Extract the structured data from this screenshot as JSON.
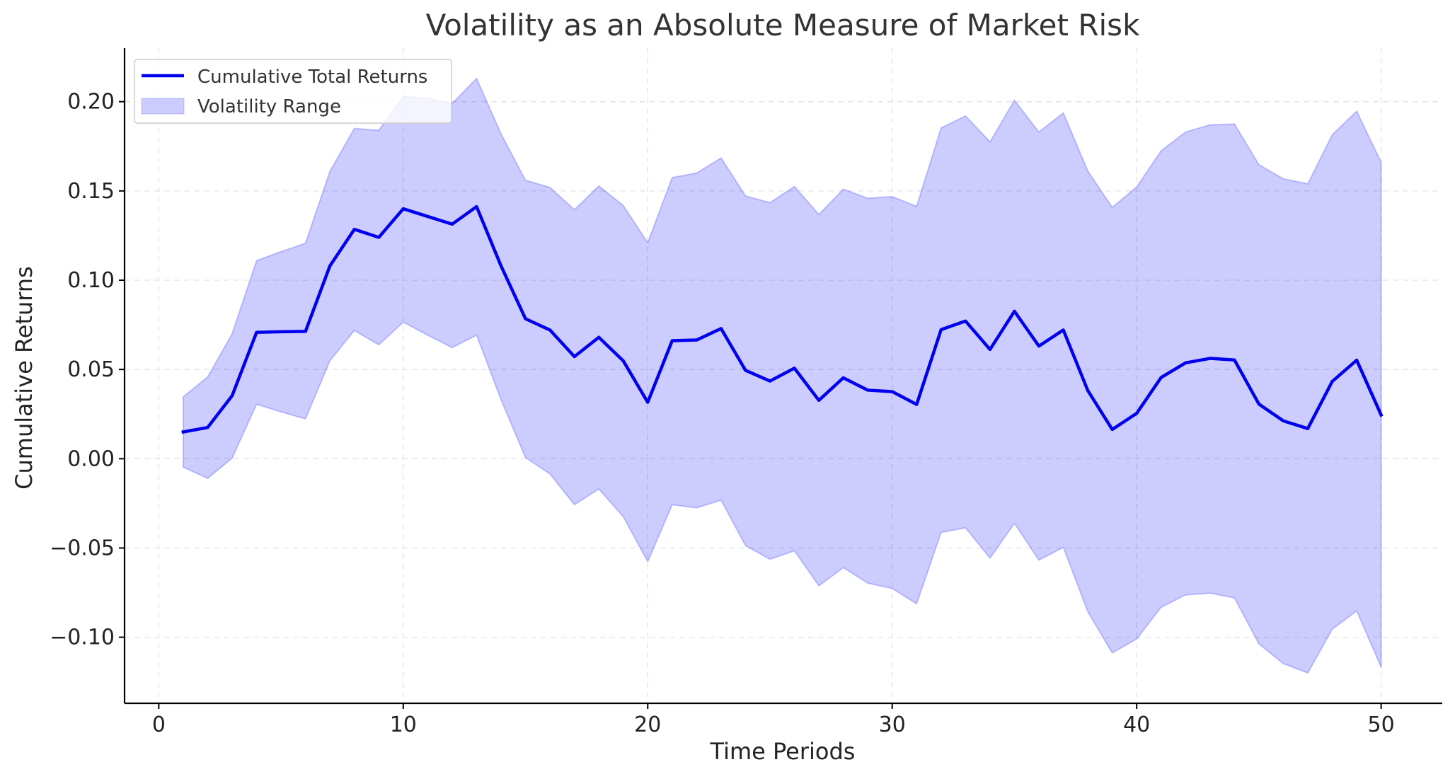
{
  "chart_data": {
    "type": "line",
    "title": "Volatility as an Absolute Measure of Market Risk",
    "xlabel": "Time Periods",
    "ylabel": "Cumulative Returns",
    "xlim": [
      -1.4,
      52.5
    ],
    "ylim": [
      -0.137,
      0.23
    ],
    "xticks": [
      0,
      10,
      20,
      30,
      40,
      50
    ],
    "xtick_labels": [
      "0",
      "10",
      "20",
      "30",
      "40",
      "50"
    ],
    "yticks": [
      -0.1,
      -0.05,
      0.0,
      0.05,
      0.1,
      0.15,
      0.2
    ],
    "ytick_labels": [
      "−0.10",
      "−0.05",
      "0.00",
      "0.05",
      "0.10",
      "0.15",
      "0.20"
    ],
    "grid": true,
    "legend_position": "top-left",
    "x": [
      1,
      2,
      3,
      4,
      5,
      6,
      7,
      8,
      9,
      10,
      11,
      12,
      13,
      14,
      15,
      16,
      17,
      18,
      19,
      20,
      21,
      22,
      23,
      24,
      25,
      26,
      27,
      28,
      29,
      30,
      31,
      32,
      33,
      34,
      35,
      36,
      37,
      38,
      39,
      40,
      41,
      42,
      43,
      44,
      45,
      46,
      47,
      48,
      49,
      50
    ],
    "series": [
      {
        "name": "Cumulative Total Returns",
        "color": "#0000ee",
        "values": [
          0.015,
          0.0175,
          0.0353,
          0.0708,
          0.0711,
          0.0713,
          0.108,
          0.1285,
          0.124,
          0.14,
          0.1357,
          0.1314,
          0.1412,
          0.108,
          0.0784,
          0.0721,
          0.0572,
          0.068,
          0.0548,
          0.0316,
          0.0661,
          0.0665,
          0.0729,
          0.0495,
          0.0435,
          0.0507,
          0.0327,
          0.0453,
          0.0384,
          0.0376,
          0.0304,
          0.0723,
          0.0771,
          0.0612,
          0.0826,
          0.0631,
          0.0721,
          0.0382,
          0.0164,
          0.0254,
          0.0455,
          0.0537,
          0.0562,
          0.0553,
          0.0306,
          0.0212,
          0.0169,
          0.0433,
          0.0552,
          0.0245
        ]
      }
    ],
    "band": {
      "name": "Volatility Range",
      "color": "#0000ff",
      "upper": [
        0.0347,
        0.0458,
        0.07,
        0.111,
        0.116,
        0.1207,
        0.161,
        0.185,
        0.184,
        0.203,
        0.202,
        0.199,
        0.213,
        0.182,
        0.156,
        0.152,
        0.1395,
        0.1528,
        0.1418,
        0.121,
        0.1575,
        0.16,
        0.1685,
        0.1472,
        0.1434,
        0.1525,
        0.1368,
        0.151,
        0.1459,
        0.1468,
        0.1414,
        0.1853,
        0.192,
        0.1775,
        0.2008,
        0.183,
        0.1937,
        0.1612,
        0.1408,
        0.1522,
        0.1725,
        0.183,
        0.187,
        0.1875,
        0.1647,
        0.1568,
        0.154,
        0.1815,
        0.1947,
        0.166
      ],
      "lower": [
        -0.0047,
        -0.011,
        0.0003,
        0.0305,
        0.0262,
        0.0223,
        0.0549,
        0.0718,
        0.0638,
        0.0765,
        0.0692,
        0.0622,
        0.0692,
        0.033,
        0.0006,
        -0.0085,
        -0.0258,
        -0.017,
        -0.0325,
        -0.0577,
        -0.0258,
        -0.0275,
        -0.0232,
        -0.0487,
        -0.0563,
        -0.0516,
        -0.0712,
        -0.061,
        -0.0697,
        -0.0727,
        -0.0813,
        -0.0413,
        -0.0387,
        -0.0557,
        -0.0362,
        -0.0568,
        -0.0497,
        -0.0857,
        -0.1088,
        -0.101,
        -0.0832,
        -0.0763,
        -0.0753,
        -0.078,
        -0.1037,
        -0.1148,
        -0.12,
        -0.0955,
        -0.0852,
        -0.1168
      ]
    }
  }
}
